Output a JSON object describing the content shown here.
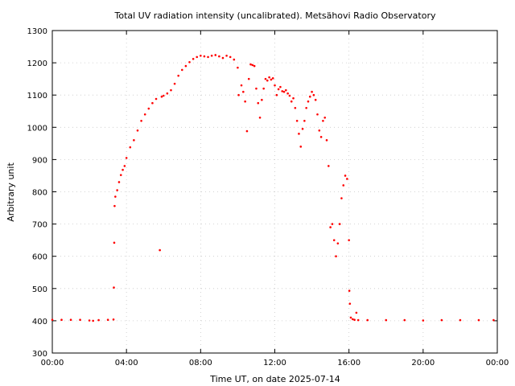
{
  "chart_data": {
    "type": "scatter",
    "title": "Total UV radiation intensity (uncalibrated). Metsähovi Radio Observatory",
    "xlabel": "Time UT, on date 2025-07-14",
    "ylabel": "Arbitrary unit",
    "x_unit": "hours UT",
    "xlim": [
      0,
      24
    ],
    "ylim": [
      300,
      1300
    ],
    "x_ticks": [
      0,
      4,
      8,
      12,
      16,
      20,
      24
    ],
    "x_tick_labels": [
      "00:00",
      "04:00",
      "08:00",
      "12:00",
      "16:00",
      "20:00",
      "00:00"
    ],
    "y_ticks": [
      300,
      400,
      500,
      600,
      700,
      800,
      900,
      1000,
      1100,
      1200,
      1300
    ],
    "y_tick_labels": [
      "300",
      "400",
      "500",
      "600",
      "700",
      "800",
      "900",
      "1000",
      "1100",
      "1200",
      "1300"
    ],
    "grid": true,
    "legend": "none",
    "marker_color": "#ff0000",
    "series": [
      {
        "values": [
          [
            0.0,
            403
          ],
          [
            0.5,
            403
          ],
          [
            1.0,
            403
          ],
          [
            1.5,
            403
          ],
          [
            2.0,
            401
          ],
          [
            2.2,
            400
          ],
          [
            2.5,
            402
          ],
          [
            3.0,
            403
          ],
          [
            3.3,
            404
          ],
          [
            3.32,
            503
          ],
          [
            3.34,
            642
          ],
          [
            3.36,
            756
          ],
          [
            3.4,
            785
          ],
          [
            3.5,
            805
          ],
          [
            3.6,
            830
          ],
          [
            3.7,
            852
          ],
          [
            3.8,
            868
          ],
          [
            3.9,
            880
          ],
          [
            4.0,
            905
          ],
          [
            4.2,
            938
          ],
          [
            4.4,
            960
          ],
          [
            4.6,
            990
          ],
          [
            4.8,
            1020
          ],
          [
            5.0,
            1040
          ],
          [
            5.2,
            1058
          ],
          [
            5.4,
            1075
          ],
          [
            5.6,
            1088
          ],
          [
            5.8,
            619
          ],
          [
            5.9,
            1095
          ],
          [
            6.0,
            1098
          ],
          [
            6.2,
            1105
          ],
          [
            6.4,
            1115
          ],
          [
            6.6,
            1135
          ],
          [
            6.8,
            1160
          ],
          [
            7.0,
            1178
          ],
          [
            7.2,
            1190
          ],
          [
            7.4,
            1202
          ],
          [
            7.6,
            1212
          ],
          [
            7.8,
            1218
          ],
          [
            8.0,
            1222
          ],
          [
            8.2,
            1220
          ],
          [
            8.4,
            1218
          ],
          [
            8.6,
            1222
          ],
          [
            8.8,
            1224
          ],
          [
            9.0,
            1220
          ],
          [
            9.2,
            1215
          ],
          [
            9.4,
            1222
          ],
          [
            9.6,
            1218
          ],
          [
            9.8,
            1210
          ],
          [
            10.0,
            1185
          ],
          [
            10.05,
            1100
          ],
          [
            10.2,
            1130
          ],
          [
            10.3,
            1110
          ],
          [
            10.4,
            1080
          ],
          [
            10.5,
            988
          ],
          [
            10.6,
            1150
          ],
          [
            10.7,
            1195
          ],
          [
            10.8,
            1193
          ],
          [
            10.9,
            1190
          ],
          [
            11.0,
            1120
          ],
          [
            11.1,
            1075
          ],
          [
            11.2,
            1030
          ],
          [
            11.3,
            1085
          ],
          [
            11.4,
            1120
          ],
          [
            11.5,
            1150
          ],
          [
            11.6,
            1145
          ],
          [
            11.7,
            1155
          ],
          [
            11.8,
            1148
          ],
          [
            11.9,
            1152
          ],
          [
            12.0,
            1130
          ],
          [
            12.1,
            1100
          ],
          [
            12.2,
            1118
          ],
          [
            12.3,
            1125
          ],
          [
            12.4,
            1112
          ],
          [
            12.5,
            1110
          ],
          [
            12.6,
            1115
          ],
          [
            12.7,
            1105
          ],
          [
            12.8,
            1098
          ],
          [
            12.9,
            1080
          ],
          [
            13.0,
            1090
          ],
          [
            13.1,
            1060
          ],
          [
            13.2,
            1020
          ],
          [
            13.3,
            980
          ],
          [
            13.4,
            940
          ],
          [
            13.5,
            995
          ],
          [
            13.6,
            1020
          ],
          [
            13.7,
            1060
          ],
          [
            13.8,
            1080
          ],
          [
            13.9,
            1095
          ],
          [
            14.0,
            1110
          ],
          [
            14.1,
            1100
          ],
          [
            14.2,
            1085
          ],
          [
            14.3,
            1040
          ],
          [
            14.4,
            990
          ],
          [
            14.5,
            970
          ],
          [
            14.6,
            1020
          ],
          [
            14.7,
            1030
          ],
          [
            14.8,
            960
          ],
          [
            14.9,
            880
          ],
          [
            15.0,
            690
          ],
          [
            15.1,
            700
          ],
          [
            15.2,
            650
          ],
          [
            15.3,
            600
          ],
          [
            15.4,
            640
          ],
          [
            15.5,
            700
          ],
          [
            15.6,
            780
          ],
          [
            15.7,
            820
          ],
          [
            15.8,
            850
          ],
          [
            15.9,
            840
          ],
          [
            16.0,
            650
          ],
          [
            16.02,
            493
          ],
          [
            16.05,
            453
          ],
          [
            16.1,
            410
          ],
          [
            16.2,
            405
          ],
          [
            16.3,
            403
          ],
          [
            16.4,
            425
          ],
          [
            16.5,
            402
          ],
          [
            17.0,
            402
          ],
          [
            18.0,
            402
          ],
          [
            19.0,
            402
          ],
          [
            20.0,
            401
          ],
          [
            21.0,
            402
          ],
          [
            22.0,
            402
          ],
          [
            23.0,
            402
          ],
          [
            23.8,
            402
          ]
        ]
      }
    ]
  }
}
